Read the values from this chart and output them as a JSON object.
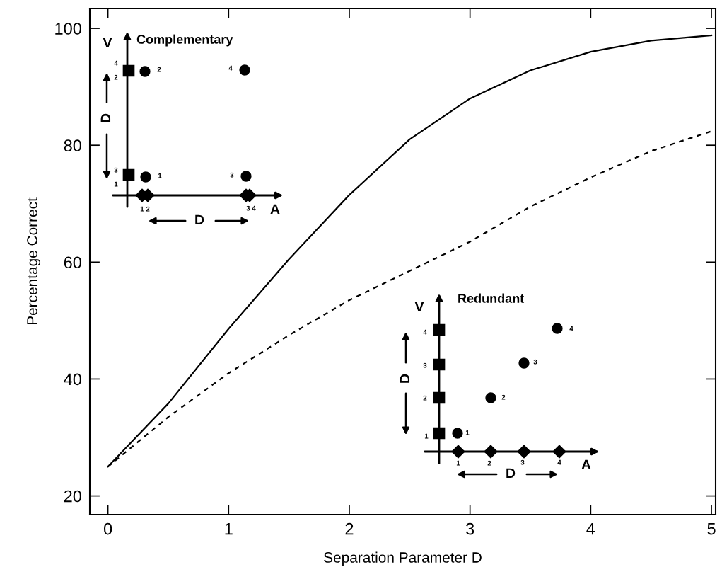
{
  "chart_data": {
    "type": "line",
    "xlabel": "Separation Parameter D",
    "ylabel": "Percentage Correct",
    "xlim": [
      -0.15,
      5.035
    ],
    "ylim": [
      16.8,
      103.4
    ],
    "xticks": [
      0,
      1,
      2,
      3,
      4,
      5
    ],
    "yticks": [
      20,
      40,
      60,
      80,
      100
    ],
    "grid": false,
    "x": [
      0,
      0.5,
      1,
      1.5,
      2,
      2.5,
      3,
      3.5,
      4,
      4.5,
      5
    ],
    "series": [
      {
        "color": "#000000",
        "line_style": "solid",
        "values": [
          25,
          35.8,
          48.6,
          60.5,
          71.5,
          81,
          88,
          92.8,
          96,
          97.9,
          98.8
        ]
      },
      {
        "color": "#000000",
        "line_style": "dashed",
        "values": [
          25,
          33.5,
          41,
          47.5,
          53.5,
          58.5,
          63.5,
          69.5,
          74.5,
          79,
          82.4
        ]
      }
    ],
    "annotations": [
      "Complementary",
      "V",
      "A",
      "D",
      "D",
      "4",
      "2",
      "3",
      "1",
      "2",
      "4",
      "1",
      "3",
      "1 2",
      "3 4",
      "Redundant",
      "V",
      "A",
      "D",
      "D",
      "4",
      "3",
      "2",
      "1",
      "1",
      "2",
      "3",
      "4",
      "1",
      "2",
      "3",
      "4"
    ]
  }
}
